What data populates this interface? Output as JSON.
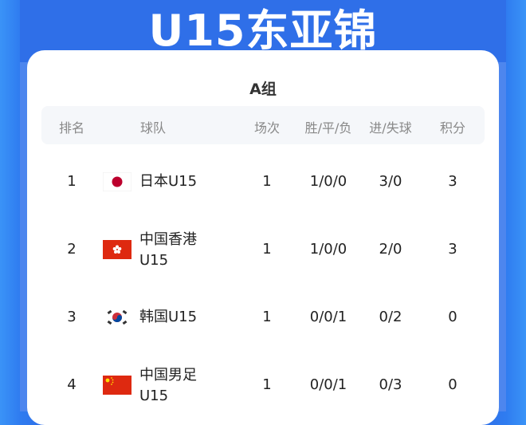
{
  "header": {
    "title": "U15东亚锦"
  },
  "group": {
    "name": "A组"
  },
  "columns": [
    "排名",
    "球队",
    "场次",
    "胜/平/负",
    "进/失球",
    "积分"
  ],
  "rows": [
    {
      "rank": "1",
      "flag": "japan-flag-icon",
      "team": "日本U15",
      "played": "1",
      "wdl": "1/0/0",
      "goals": "3/0",
      "points": "3"
    },
    {
      "rank": "2",
      "flag": "hong-kong-flag-icon",
      "team": "中国香港U15",
      "played": "1",
      "wdl": "1/0/0",
      "goals": "2/0",
      "points": "3"
    },
    {
      "rank": "3",
      "flag": "korea-flag-icon",
      "team": "韩国U15",
      "played": "1",
      "wdl": "0/0/1",
      "goals": "0/2",
      "points": "0"
    },
    {
      "rank": "4",
      "flag": "china-flag-icon",
      "team": "中国男足U15",
      "played": "1",
      "wdl": "0/0/1",
      "goals": "0/3",
      "points": "0"
    }
  ],
  "colors": {
    "primary": "#2f6fe8",
    "flag_red": "#de2910"
  }
}
